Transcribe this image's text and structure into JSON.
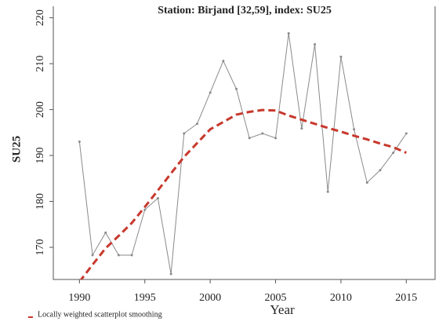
{
  "chart_data": {
    "type": "line",
    "title": "Station: Birjand [32,59], index: SU25",
    "x_label": "Year",
    "y_label": "SU25",
    "x": [
      1990,
      1991,
      1992,
      1993,
      1994,
      1995,
      1996,
      1997,
      1998,
      1999,
      2000,
      2001,
      2002,
      2003,
      2004,
      2005,
      2006,
      2007,
      2008,
      2009,
      2010,
      2011,
      2012,
      2013,
      2014,
      2015
    ],
    "series": [
      {
        "color": "#8a8a8a",
        "style": "solid",
        "markers": true,
        "values": [
          193,
          168.3,
          173.2,
          168.3,
          168.3,
          178.2,
          180.7,
          164.2,
          194.8,
          196.9,
          203.7,
          210.6,
          204.5,
          193.8,
          194.8,
          193.8,
          216.6,
          195.9,
          214.2,
          182.1,
          211.5,
          195.7,
          184.1,
          186.8,
          190.6,
          194.8
        ]
      },
      {
        "name": "Locally weighted scatterplot smoothing",
        "color": "#c8382c",
        "style": "dashed",
        "markers": false,
        "values": [
          162.5,
          166.2,
          169.8,
          172.5,
          175.3,
          178.8,
          182.4,
          186.1,
          189.7,
          192.7,
          195.7,
          197.3,
          198.9,
          199.5,
          199.9,
          199.8,
          198.7,
          197.8,
          196.9,
          196.0,
          195.2,
          194.3,
          193.5,
          192.6,
          191.8,
          190.6
        ]
      }
    ],
    "xlim": [
      1988,
      2017.2
    ],
    "ylim": [
      163,
      222.5
    ],
    "xticks": [
      1990,
      1995,
      2000,
      2005,
      2010,
      2015
    ],
    "yticks": [
      170,
      180,
      190,
      200,
      210,
      220
    ],
    "legend": "bottom-left"
  }
}
